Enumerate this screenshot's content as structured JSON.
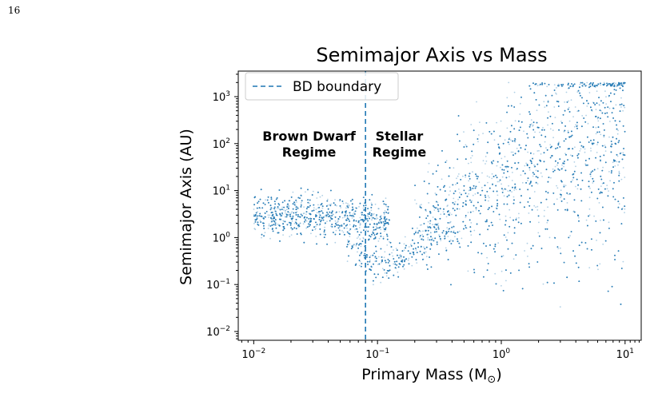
{
  "page": {
    "number": "16"
  },
  "chart_data": {
    "type": "scatter",
    "title": "Semimajor Axis vs Mass",
    "xlabel": "Primary Mass (M",
    "xlabel_sub": "⊙",
    "xlabel_close": ")",
    "ylabel": "Semimajor Axis (AU)",
    "xscale": "log",
    "yscale": "log",
    "xlim": [
      0.0075,
      13.5
    ],
    "ylim": [
      0.0065,
      3500
    ],
    "xticks": [
      {
        "value": 0.01,
        "base": "10",
        "exp": "−2"
      },
      {
        "value": 0.1,
        "base": "10",
        "exp": "−1"
      },
      {
        "value": 1,
        "base": "10",
        "exp": "0"
      },
      {
        "value": 10,
        "base": "10",
        "exp": "1"
      }
    ],
    "yticks": [
      {
        "value": 0.01,
        "base": "10",
        "exp": "−2"
      },
      {
        "value": 0.1,
        "base": "10",
        "exp": "−1"
      },
      {
        "value": 1,
        "base": "10",
        "exp": "0"
      },
      {
        "value": 10,
        "base": "10",
        "exp": "1"
      },
      {
        "value": 100,
        "base": "10",
        "exp": "2"
      },
      {
        "value": 1000,
        "base": "10",
        "exp": "3"
      }
    ],
    "series": [
      {
        "name": "",
        "color": "#1f77b4",
        "marker_alpha": 0.35,
        "points_approx": 18000,
        "x_range": [
          0.01,
          10
        ],
        "y_range": [
          0.01,
          2000
        ]
      }
    ],
    "vline": {
      "x": 0.08,
      "color": "#1f77b4",
      "style": "dashed",
      "label": "BD boundary"
    },
    "legend": {
      "position": "top-left",
      "entries": [
        "BD boundary"
      ]
    },
    "annotations": [
      {
        "lines": [
          "Brown Dwarf",
          "Regime"
        ],
        "x": 0.028,
        "y": 100
      },
      {
        "lines": [
          "Stellar",
          "Regime"
        ],
        "x": 0.15,
        "y": 100
      }
    ],
    "grid": false
  }
}
